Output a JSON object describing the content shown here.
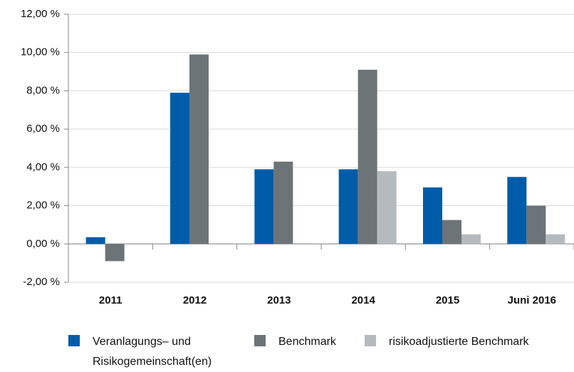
{
  "chart_data": {
    "type": "bar",
    "categories": [
      "2011",
      "2012",
      "2013",
      "2014",
      "2015",
      "Juni 2016"
    ],
    "series": [
      {
        "name": "Veranlagungs– und Risikogemeinschaft(en)",
        "color": "#005ca8",
        "values": [
          0.35,
          7.9,
          3.9,
          3.9,
          2.95,
          3.5
        ]
      },
      {
        "name": "Benchmark",
        "color": "#6d7478",
        "values": [
          -0.9,
          9.9,
          4.3,
          9.1,
          1.25,
          2.0
        ]
      },
      {
        "name": "risikoadjustierte Benchmark",
        "color": "#b5babe",
        "values": [
          null,
          null,
          null,
          3.8,
          0.5,
          0.5
        ]
      }
    ],
    "ylim": [
      -2,
      12
    ],
    "yticks": [
      {
        "value": -2,
        "label": "-2,00 %"
      },
      {
        "value": 0,
        "label": "0,00 %"
      },
      {
        "value": 2,
        "label": "2,00 %"
      },
      {
        "value": 4,
        "label": "4,00 %"
      },
      {
        "value": 6,
        "label": "6,00 %"
      },
      {
        "value": 8,
        "label": "8,00 %"
      },
      {
        "value": 10,
        "label": "10,00 %"
      },
      {
        "value": 12,
        "label": "12,00 %"
      }
    ],
    "grid": true
  }
}
